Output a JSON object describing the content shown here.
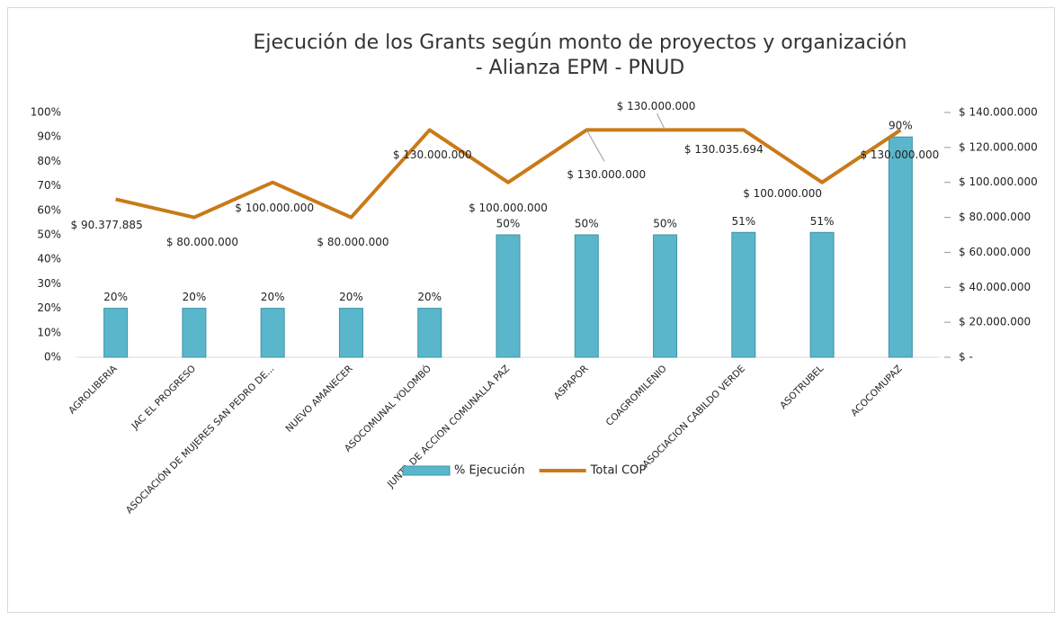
{
  "chart_data": {
    "type": "bar-line",
    "title": [
      "Ejecución de los Grants según monto de proyectos y  organización",
      "- Alianza EPM  - PNUD"
    ],
    "categories": [
      "AGROLIBERIA",
      "JAC  EL PROGRESO",
      "ASOCIACIÓN DE MUJERES SAN PEDRO DE...",
      "NUEVO AMANECER",
      "ASOCOMUNAL YOLOMBÓ",
      "JUNTA DE ACCION COMUNALLA PAZ",
      "ASPAPOR",
      "COAGROMILENIO",
      "ASOCIACION CABILDO VERDE",
      "ASOTRUBEL",
      "ACOCOMUPAZ"
    ],
    "series": [
      {
        "name": "% Ejecución",
        "type": "bar",
        "color": "#5ab6cb",
        "axis": "y",
        "values": [
          20,
          20,
          20,
          20,
          20,
          50,
          50,
          50,
          51,
          51,
          90
        ],
        "value_labels": [
          "20%",
          "20%",
          "20%",
          "20%",
          "20%",
          "50%",
          "50%",
          "50%",
          "51%",
          "51%",
          "90%"
        ]
      },
      {
        "name": "Total COP",
        "type": "line",
        "color": "#c97a17",
        "axis": "y2",
        "values": [
          90377885,
          80000000,
          100000000,
          80000000,
          130000000,
          100000000,
          130000000,
          130000000,
          130035694,
          100000000,
          130000000
        ],
        "value_labels": [
          "$ 90.377.885",
          "$ 80.000.000",
          "$ 100.000.000",
          "$ 80.000.000",
          "$ 130.000.000",
          "$ 100.000.000",
          "$ 130.000.000",
          "$ 130.000.000",
          "$ 130.035.694",
          "$ 100.000.000",
          "$ 130.000.000"
        ]
      }
    ],
    "ylim": [
      0,
      100
    ],
    "yticks": [
      {
        "value": 0,
        "label": "0%"
      },
      {
        "value": 10,
        "label": "10%"
      },
      {
        "value": 20,
        "label": "20%"
      },
      {
        "value": 30,
        "label": "30%"
      },
      {
        "value": 40,
        "label": "40%"
      },
      {
        "value": 50,
        "label": "50%"
      },
      {
        "value": 60,
        "label": "60%"
      },
      {
        "value": 70,
        "label": "70%"
      },
      {
        "value": 80,
        "label": "80%"
      },
      {
        "value": 90,
        "label": "90%"
      },
      {
        "value": 100,
        "label": "100%"
      }
    ],
    "y2lim": [
      0,
      140000000
    ],
    "y2ticks": [
      {
        "value": 0,
        "label": "$ -"
      },
      {
        "value": 20000000,
        "label": "$ 20.000.000"
      },
      {
        "value": 40000000,
        "label": "$ 40.000.000"
      },
      {
        "value": 60000000,
        "label": "$ 60.000.000"
      },
      {
        "value": 80000000,
        "label": "$ 80.000.000"
      },
      {
        "value": 100000000,
        "label": "$ 100.000.000"
      },
      {
        "value": 120000000,
        "label": "$ 120.000.000"
      },
      {
        "value": 140000000,
        "label": "$ 140.000.000"
      }
    ],
    "legend": "bottom",
    "grid": false
  }
}
